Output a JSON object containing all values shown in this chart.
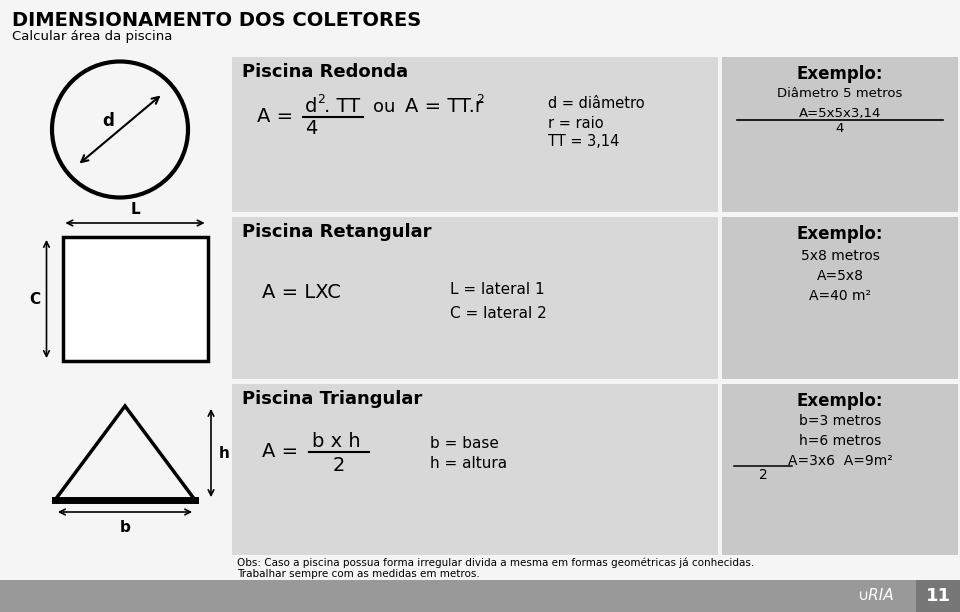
{
  "title": "DIMENSIONAMENTO DOS COLETORES",
  "subtitle": "Calcular área da piscina",
  "bg_color": "#f0f0f0",
  "gray_main": "#d8d8d8",
  "gray_exemplo": "#c8c8c8",
  "bottom_bar": "#999999",
  "bottom_num_box": "#777777",
  "row1": {
    "section_title": "Piscina Redonda",
    "exemplo_title": "Exemplo:",
    "exemplo_line1": "Diâmetro 5 metros",
    "exemplo_line2": "A=5x5x3,14",
    "exemplo_line3": "4",
    "var1": "d = diâmetro",
    "var2": "r = raio",
    "var3": "TT = 3,14"
  },
  "row2": {
    "section_title": "Piscina Retangular",
    "formula": "A = LXC",
    "var1": "L = lateral 1",
    "var2": "C = lateral 2",
    "exemplo_title": "Exemplo:",
    "exemplo_line1": "5x8 metros",
    "exemplo_line2": "A=5x8",
    "exemplo_line3": "A=40 m²"
  },
  "row3": {
    "section_title": "Piscina Triangular",
    "exemplo_title": "Exemplo:",
    "exemplo_line1": "b=3 metros",
    "exemplo_line2": "h=6 metros",
    "exemplo_line3": "A=3x6  A=9m²",
    "exemplo_line4": "2",
    "var1": "b = base",
    "var2": "h = altura"
  },
  "obs_line1": "Obs: Caso a piscina possua forma irregular divida a mesma em formas geométricas já conhecidas.",
  "obs_line2": "Trabalhar sempre com as medidas em metros.",
  "page_num": "11"
}
